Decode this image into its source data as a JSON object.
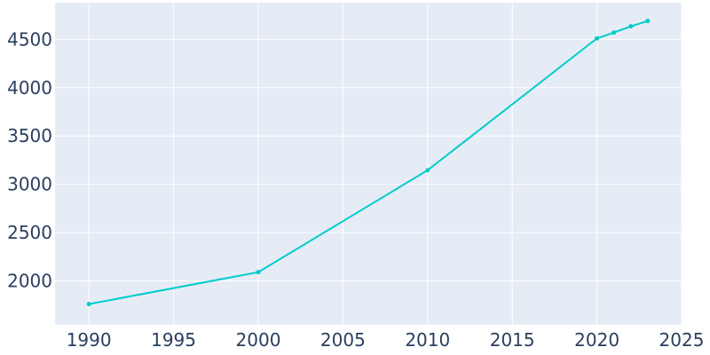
{
  "chart_data": {
    "type": "line",
    "title": "",
    "xlabel": "",
    "ylabel": "",
    "xlim": [
      1988,
      2025
    ],
    "ylim": [
      1545,
      4880
    ],
    "grid": true,
    "legend": "none",
    "x_ticks": [
      1990,
      1995,
      2000,
      2005,
      2010,
      2015,
      2020,
      2025
    ],
    "y_ticks": [
      2000,
      2500,
      3000,
      3500,
      4000,
      4500
    ],
    "series": [
      {
        "color": "#00cccc",
        "x": [
          1990,
          2000,
          2010,
          2020,
          2021,
          2022,
          2023
        ],
        "y": [
          1760,
          2090,
          3145,
          4510,
          4570,
          4635,
          4690
        ]
      }
    ],
    "colors": {
      "plot_background": "#e5ecf6",
      "grid": "#ffffff",
      "tick_text": "#2a3f5f"
    }
  }
}
